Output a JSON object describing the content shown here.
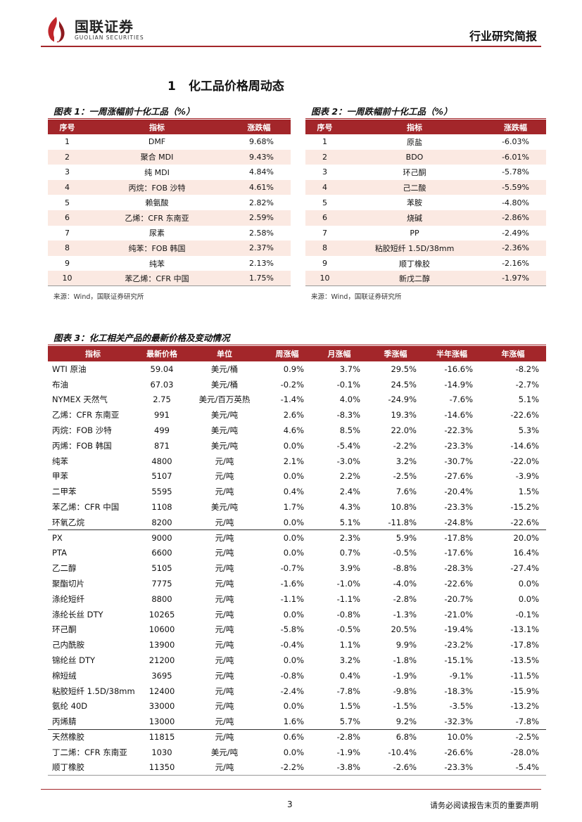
{
  "header": {
    "logo_cn": "国联证券",
    "logo_en": "GUOLIAN SECURITIES",
    "report_type": "行业研究简报"
  },
  "section": {
    "num": "1",
    "title": "化工品价格周动态"
  },
  "fig1": {
    "title": "图表 1：一周涨幅前十化工品（%）",
    "headers": [
      "序号",
      "指标",
      "涨跌幅"
    ],
    "rows": [
      [
        "1",
        "DMF",
        "9.68%"
      ],
      [
        "2",
        "聚合 MDI",
        "9.43%"
      ],
      [
        "3",
        "纯 MDI",
        "4.84%"
      ],
      [
        "4",
        "丙烷：FOB 沙特",
        "4.61%"
      ],
      [
        "5",
        "赖氨酸",
        "2.82%"
      ],
      [
        "6",
        "乙烯：CFR 东南亚",
        "2.59%"
      ],
      [
        "7",
        "尿素",
        "2.58%"
      ],
      [
        "8",
        "纯苯：FOB 韩国",
        "2.37%"
      ],
      [
        "9",
        "纯苯",
        "2.13%"
      ],
      [
        "10",
        "苯乙烯：CFR 中国",
        "1.75%"
      ]
    ],
    "source": "来源：Wind，国联证券研究所"
  },
  "fig2": {
    "title": "图表 2：一周跌幅前十化工品（%）",
    "headers": [
      "序号",
      "指标",
      "涨跌幅"
    ],
    "rows": [
      [
        "1",
        "原盐",
        "-6.03%"
      ],
      [
        "2",
        "BDO",
        "-6.01%"
      ],
      [
        "3",
        "环己酮",
        "-5.78%"
      ],
      [
        "4",
        "己二酸",
        "-5.59%"
      ],
      [
        "5",
        "苯胺",
        "-4.80%"
      ],
      [
        "6",
        "烧碱",
        "-2.86%"
      ],
      [
        "7",
        "PP",
        "-2.49%"
      ],
      [
        "8",
        "粘胶短纤 1.5D/38mm",
        "-2.36%"
      ],
      [
        "9",
        "顺丁橡胶",
        "-2.16%"
      ],
      [
        "10",
        "新戊二醇",
        "-1.97%"
      ]
    ],
    "source": "来源：Wind，国联证券研究所"
  },
  "fig3": {
    "title": "图表 3：化工相关产品的最新价格及变动情况",
    "headers": [
      "指标",
      "最新价格",
      "单位",
      "周涨幅",
      "月涨幅",
      "季涨幅",
      "半年涨幅",
      "年涨幅"
    ],
    "rows": [
      [
        "WTI 原油",
        "59.04",
        "美元/桶",
        "0.9%",
        "3.7%",
        "29.5%",
        "-16.6%",
        "-8.2%"
      ],
      [
        "布油",
        "67.03",
        "美元/桶",
        "-0.2%",
        "-0.1%",
        "24.5%",
        "-14.9%",
        "-2.7%"
      ],
      [
        "NYMEX 天然气",
        "2.75",
        "美元/百万英热",
        "-1.4%",
        "4.0%",
        "-24.9%",
        "-7.6%",
        "5.1%"
      ],
      [
        "乙烯：CFR 东南亚",
        "991",
        "美元/吨",
        "2.6%",
        "-8.3%",
        "19.3%",
        "-14.6%",
        "-22.6%"
      ],
      [
        "丙烷：FOB 沙特",
        "499",
        "美元/吨",
        "4.6%",
        "8.5%",
        "22.0%",
        "-22.3%",
        "5.3%"
      ],
      [
        "丙烯：FOB 韩国",
        "871",
        "美元/吨",
        "0.0%",
        "-5.4%",
        "-2.2%",
        "-23.3%",
        "-14.6%"
      ],
      [
        "纯苯",
        "4800",
        "元/吨",
        "2.1%",
        "-3.0%",
        "3.2%",
        "-30.7%",
        "-22.0%"
      ],
      [
        "甲苯",
        "5107",
        "元/吨",
        "0.0%",
        "2.2%",
        "-2.5%",
        "-27.6%",
        "-3.9%"
      ],
      [
        "二甲苯",
        "5595",
        "元/吨",
        "0.4%",
        "2.4%",
        "7.6%",
        "-20.4%",
        "1.5%"
      ],
      [
        "苯乙烯：CFR 中国",
        "1108",
        "美元/吨",
        "1.7%",
        "4.3%",
        "10.8%",
        "-23.3%",
        "-15.2%"
      ],
      [
        "环氧乙烷",
        "8200",
        "元/吨",
        "0.0%",
        "5.1%",
        "-11.8%",
        "-24.8%",
        "-22.6%"
      ],
      [
        "PX",
        "9000",
        "元/吨",
        "0.0%",
        "2.3%",
        "5.9%",
        "-17.8%",
        "20.0%"
      ],
      [
        "PTA",
        "6600",
        "元/吨",
        "0.0%",
        "0.7%",
        "-0.5%",
        "-17.6%",
        "16.4%"
      ],
      [
        "乙二醇",
        "5105",
        "元/吨",
        "-0.7%",
        "3.9%",
        "-8.8%",
        "-28.3%",
        "-27.4%"
      ],
      [
        "聚酯切片",
        "7775",
        "元/吨",
        "-1.6%",
        "-1.0%",
        "-4.0%",
        "-22.6%",
        "0.0%"
      ],
      [
        "涤纶短纤",
        "8800",
        "元/吨",
        "-1.1%",
        "-1.1%",
        "-2.8%",
        "-20.7%",
        "0.0%"
      ],
      [
        "涤纶长丝 DTY",
        "10265",
        "元/吨",
        "0.0%",
        "-0.8%",
        "-1.3%",
        "-21.0%",
        "-0.1%"
      ],
      [
        "环己酮",
        "10600",
        "元/吨",
        "-5.8%",
        "-0.5%",
        "20.5%",
        "-19.4%",
        "-13.1%"
      ],
      [
        "己内酰胺",
        "13900",
        "元/吨",
        "-0.4%",
        "1.1%",
        "9.9%",
        "-23.2%",
        "-17.8%"
      ],
      [
        "锦纶丝 DTY",
        "21200",
        "元/吨",
        "0.0%",
        "3.2%",
        "-1.8%",
        "-15.1%",
        "-13.5%"
      ],
      [
        "棉短绒",
        "3695",
        "元/吨",
        "-0.8%",
        "0.4%",
        "-1.9%",
        "-9.1%",
        "-11.5%"
      ],
      [
        "粘胶短纤 1.5D/38mm",
        "12400",
        "元/吨",
        "-2.4%",
        "-7.8%",
        "-9.8%",
        "-18.3%",
        "-15.9%"
      ],
      [
        "氨纶 40D",
        "33000",
        "元/吨",
        "0.0%",
        "1.5%",
        "-1.5%",
        "-3.5%",
        "-13.2%"
      ],
      [
        "丙烯腈",
        "13000",
        "元/吨",
        "1.6%",
        "5.7%",
        "9.2%",
        "-32.3%",
        "-7.8%"
      ],
      [
        "天然橡胶",
        "11815",
        "元/吨",
        "0.6%",
        "-2.8%",
        "6.8%",
        "10.0%",
        "-2.5%"
      ],
      [
        "丁二烯：CFR 东南亚",
        "1030",
        "美元/吨",
        "0.0%",
        "-1.9%",
        "-10.4%",
        "-26.6%",
        "-28.0%"
      ],
      [
        "顺丁橡胶",
        "11350",
        "元/吨",
        "-2.2%",
        "-3.8%",
        "-2.6%",
        "-23.3%",
        "-5.4%"
      ]
    ]
  },
  "footer": {
    "page": "3",
    "disclaimer": "请务必阅读报告末页的重要声明"
  },
  "colors": {
    "accent": "#a3262a",
    "alt_row": "#fbe9e2"
  }
}
